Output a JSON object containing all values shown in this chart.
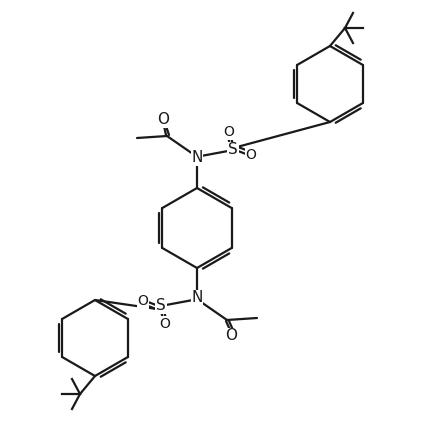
{
  "bg": "#ffffff",
  "lc": "#1a1a1a",
  "lw": 1.6,
  "figsize": [
    4.24,
    4.46
  ],
  "dpi": 100,
  "xlim": [
    0,
    424
  ],
  "ylim": [
    0,
    446
  ]
}
